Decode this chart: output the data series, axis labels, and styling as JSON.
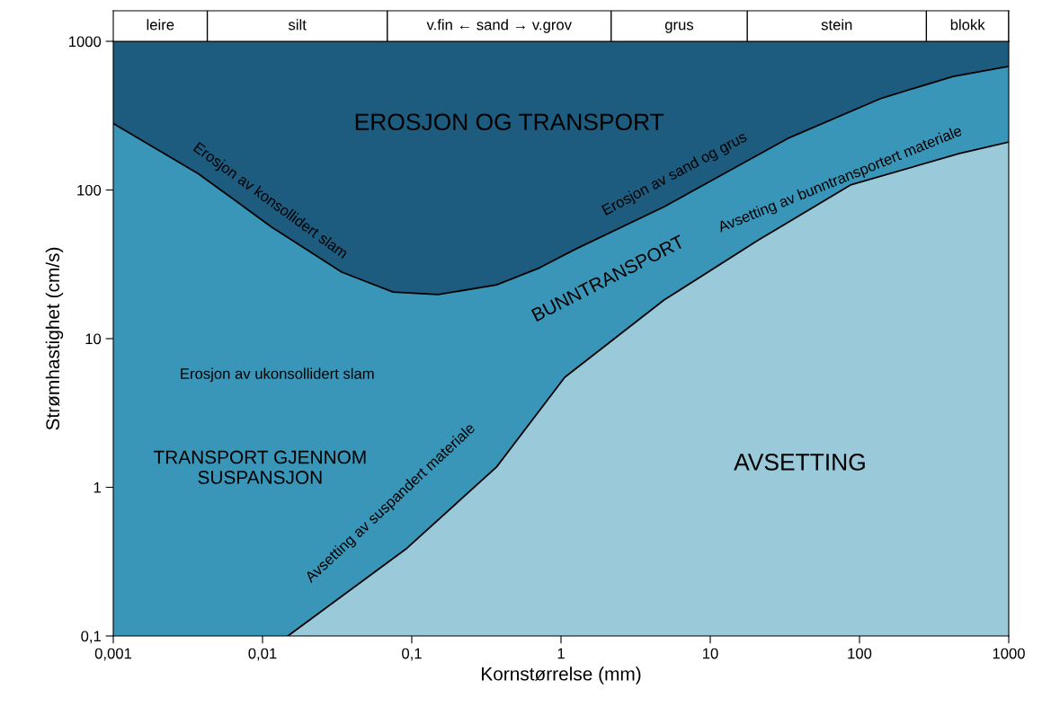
{
  "chart_data": {
    "type": "area",
    "xlabel": "Kornstørrelse (mm)",
    "ylabel": "Strømhastighet (cm/s)",
    "log": "xy",
    "grid": false,
    "legend": false,
    "xlim": [
      0.001,
      1000
    ],
    "ylim": [
      0.1,
      1000
    ],
    "xticks": [
      {
        "value": 0.001,
        "label": "0,001"
      },
      {
        "value": 0.01,
        "label": "0,01"
      },
      {
        "value": 0.1,
        "label": "0,1"
      },
      1,
      10,
      100,
      1000
    ],
    "yticks": [
      {
        "value": 0.1,
        "label": "0,1"
      },
      1,
      10,
      100,
      1000
    ],
    "series": [
      {
        "color": "#1d5c7e",
        "x": [
          0.001,
          1000
        ],
        "values": [
          1000,
          1000
        ]
      },
      {
        "color": "#3a96b8",
        "x": [
          0.001,
          0.0037,
          0.0116,
          0.034,
          0.075,
          0.15,
          0.37,
          0.72,
          1.25,
          4.9,
          33,
          142,
          424,
          1000
        ],
        "values": [
          280,
          129,
          56,
          28,
          20.6,
          19.8,
          23,
          30,
          40,
          77,
          222,
          416,
          580,
          678
        ]
      },
      {
        "color": "#9ac9d9",
        "x": [
          0.0148,
          0.093,
          0.37,
          1.06,
          4.9,
          21,
          87,
          467,
          1000
        ],
        "values": [
          0.1,
          0.39,
          1.37,
          5.5,
          18.2,
          46,
          108,
          176,
          210
        ]
      }
    ],
    "annotations": [
      "leire",
      "silt",
      "v.fin ← sand → v.grov",
      "grus",
      "stein",
      "blokk",
      "EROSJON OG TRANSPORT",
      "Erosjon av konsollidert slam",
      "Erosjon av sand og grus",
      "BUNNTRANSPORT",
      "Avsetting av bunntransportert materiale",
      "Erosjon av ukonsollidert slam",
      "TRANSPORT GJENNOM\nSUSPANSJON",
      "Avsetting av suspandert materiale",
      "AVSETTING"
    ]
  }
}
